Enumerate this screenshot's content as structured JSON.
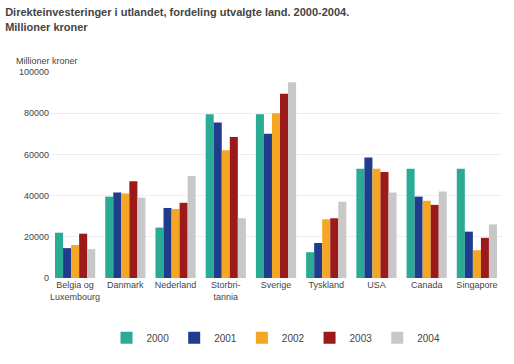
{
  "chart_data": {
    "type": "bar",
    "title": "Direkteinvesteringer i utlandet, fordeling utvalgte land. 2000-2004.",
    "subtitle": "Millioner kroner",
    "ylabel": "Millioner kroner",
    "categories": [
      "Belgia og\nLuxembourg",
      "Danmark",
      "Nederland",
      "Storbri-\ntannia",
      "Sverige",
      "Tyskland",
      "USA",
      "Canada",
      "Singapore"
    ],
    "series": [
      {
        "name": "2000",
        "color": "#2aab96",
        "values": [
          22000,
          39500,
          24500,
          79500,
          79500,
          12500,
          53000,
          53000,
          53000
        ]
      },
      {
        "name": "2001",
        "color": "#1f3d8c",
        "values": [
          14500,
          41500,
          34000,
          75500,
          70000,
          17000,
          58500,
          39500,
          22500
        ]
      },
      {
        "name": "2002",
        "color": "#f5a623",
        "values": [
          16000,
          41000,
          33500,
          62000,
          80000,
          28500,
          53000,
          37500,
          13500
        ]
      },
      {
        "name": "2003",
        "color": "#9b1a1a",
        "values": [
          21500,
          47000,
          36500,
          68500,
          89500,
          29000,
          51500,
          35500,
          19500
        ]
      },
      {
        "name": "2004",
        "color": "#c8c8c8",
        "values": [
          14000,
          39000,
          49500,
          29000,
          95000,
          37000,
          41500,
          42000,
          26000
        ]
      }
    ],
    "ylim": [
      0,
      100000
    ],
    "yticks": [
      0,
      20000,
      40000,
      60000,
      80000,
      100000
    ],
    "grid": true,
    "legend": "bottom"
  }
}
